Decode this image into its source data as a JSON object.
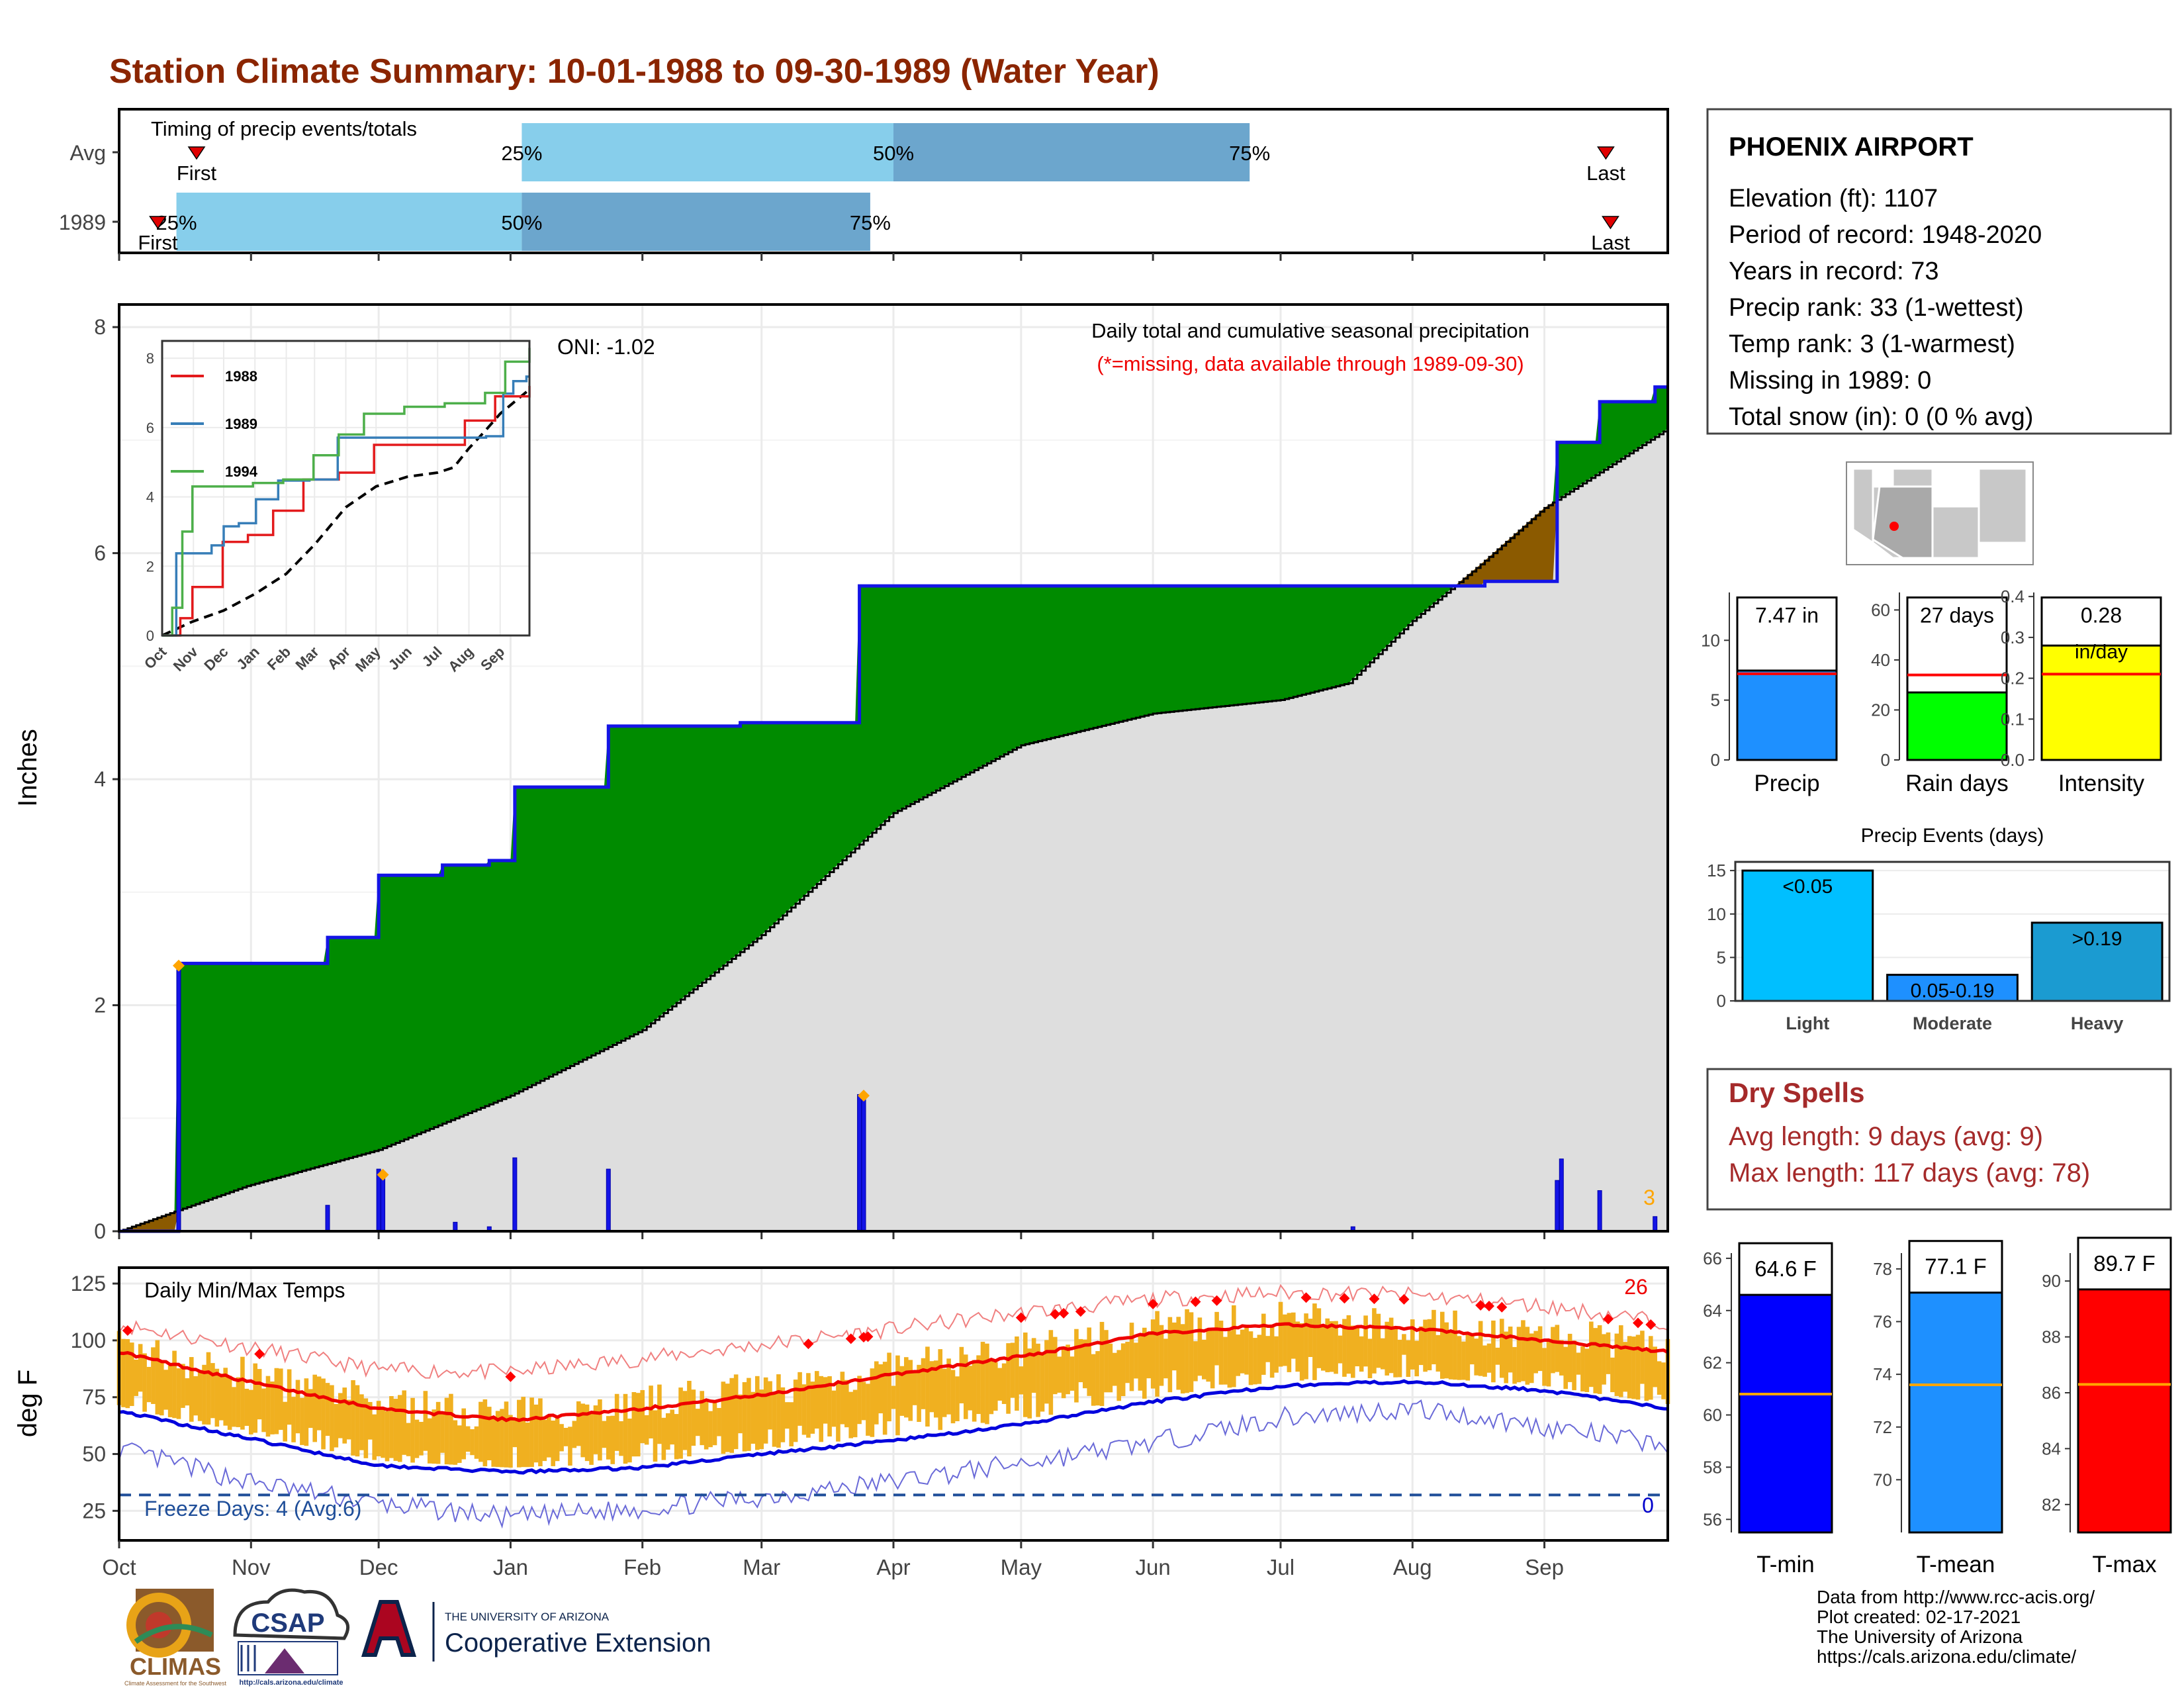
{
  "title": "Station Climate Summary: 10-01-1988 to 09-30-1989 (Water Year)",
  "colors": {
    "title": "#8b2500",
    "green_surplus": "#008b00",
    "avg_gray": "#dedede",
    "blue_line": "#1414e6",
    "orange_bar": "#f0b020",
    "light_blue": "#87ceeb",
    "steel_blue": "#6ca6cd",
    "dry_spell_red": "#a52a2a"
  },
  "months": [
    "Oct",
    "Nov",
    "Dec",
    "Jan",
    "Feb",
    "Mar",
    "Apr",
    "May",
    "Jun",
    "Jul",
    "Aug",
    "Sep"
  ],
  "timing": {
    "title": "Timing of precip events/totals",
    "rows": [
      "Avg",
      "1989"
    ],
    "avg": {
      "first": 0.05,
      "q25": 0.26,
      "q50": 0.5,
      "q75": 0.73,
      "last": 0.96
    },
    "y1989": {
      "first": 0.025,
      "q25": 0.037,
      "q50": 0.26,
      "q75": 0.485,
      "last": 0.963
    },
    "first_label": "First",
    "last_label": "Last",
    "q_labels": [
      "25%",
      "50%",
      "75%"
    ]
  },
  "precip_chart": {
    "type": "area",
    "ylabel": "Inches",
    "yticks": [
      0,
      2,
      4,
      6,
      8
    ],
    "ylim": [
      0,
      8.2
    ],
    "oni": "ONI: -1.02",
    "subtitle": "Daily total and cumulative seasonal precipitation",
    "missing_note": "(*=missing, data available through 1989-09-30)",
    "missing_count": "3",
    "cumulative_1989": [
      [
        0,
        0.0
      ],
      [
        13,
        0.0
      ],
      [
        14,
        2.37
      ],
      [
        48,
        2.37
      ],
      [
        49,
        2.6
      ],
      [
        60,
        2.6
      ],
      [
        61,
        3.15
      ],
      [
        75,
        3.15
      ],
      [
        76,
        3.24
      ],
      [
        86,
        3.24
      ],
      [
        87,
        3.28
      ],
      [
        92,
        3.28
      ],
      [
        93,
        3.93
      ],
      [
        114,
        3.93
      ],
      [
        115,
        4.47
      ],
      [
        145,
        4.47
      ],
      [
        146,
        4.5
      ],
      [
        173,
        4.5
      ],
      [
        174,
        5.71
      ],
      [
        320,
        5.71
      ],
      [
        321,
        5.75
      ],
      [
        337,
        5.75
      ],
      [
        338,
        6.98
      ],
      [
        347,
        6.98
      ],
      [
        348,
        7.34
      ],
      [
        360,
        7.34
      ],
      [
        361,
        7.47
      ],
      [
        364,
        7.47
      ]
    ],
    "cumulative_avg": [
      [
        0,
        0.0
      ],
      [
        30,
        0.4
      ],
      [
        61,
        0.72
      ],
      [
        92,
        1.2
      ],
      [
        123,
        1.78
      ],
      [
        151,
        2.62
      ],
      [
        182,
        3.7
      ],
      [
        212,
        4.3
      ],
      [
        243,
        4.58
      ],
      [
        273,
        4.7
      ],
      [
        289,
        4.85
      ],
      [
        304,
        5.4
      ],
      [
        320,
        5.9
      ],
      [
        335,
        6.4
      ],
      [
        364,
        7.1
      ]
    ],
    "daily_bars": [
      [
        14,
        2.37
      ],
      [
        49,
        0.23
      ],
      [
        61,
        0.55
      ],
      [
        62,
        0.48
      ],
      [
        79,
        0.08
      ],
      [
        87,
        0.04
      ],
      [
        93,
        0.65
      ],
      [
        115,
        0.55
      ],
      [
        174,
        1.21
      ],
      [
        175,
        1.18
      ],
      [
        290,
        0.04
      ],
      [
        338,
        0.45
      ],
      [
        339,
        0.64
      ],
      [
        348,
        0.36
      ],
      [
        361,
        0.13
      ]
    ],
    "diamonds": [
      [
        14,
        2.35
      ],
      [
        62,
        0.5
      ],
      [
        175,
        1.2
      ]
    ],
    "inset": {
      "yticks": [
        0,
        2,
        4,
        6,
        8
      ],
      "months": [
        "Oct",
        "Nov",
        "Dec",
        "Jan",
        "Feb",
        "Mar",
        "Apr",
        "May",
        "Jun",
        "Jul",
        "Aug",
        "Sep"
      ],
      "series": [
        {
          "name": "1988",
          "color": "#e31a1c",
          "points": [
            [
              0,
              0.0
            ],
            [
              18,
              0.5
            ],
            [
              30,
              1.4
            ],
            [
              60,
              2.7
            ],
            [
              85,
              2.9
            ],
            [
              110,
              3.6
            ],
            [
              140,
              4.5
            ],
            [
              175,
              4.7
            ],
            [
              210,
              5.5
            ],
            [
              275,
              5.5
            ],
            [
              300,
              6.2
            ],
            [
              330,
              6.9
            ],
            [
              364,
              7.2
            ]
          ]
        },
        {
          "name": "1989",
          "color": "#377eb8",
          "points": [
            [
              0,
              0.0
            ],
            [
              14,
              2.37
            ],
            [
              49,
              2.6
            ],
            [
              61,
              3.15
            ],
            [
              76,
              3.24
            ],
            [
              93,
              3.93
            ],
            [
              115,
              4.47
            ],
            [
              146,
              4.5
            ],
            [
              174,
              5.71
            ],
            [
              321,
              5.75
            ],
            [
              338,
              6.98
            ],
            [
              348,
              7.34
            ],
            [
              361,
              7.47
            ],
            [
              364,
              7.47
            ]
          ]
        },
        {
          "name": "1994",
          "color": "#4daf4a",
          "points": [
            [
              0,
              0.0
            ],
            [
              10,
              0.8
            ],
            [
              20,
              3.0
            ],
            [
              30,
              4.3
            ],
            [
              90,
              4.4
            ],
            [
              120,
              4.5
            ],
            [
              150,
              5.2
            ],
            [
              175,
              5.8
            ],
            [
              200,
              6.4
            ],
            [
              240,
              6.6
            ],
            [
              280,
              6.7
            ],
            [
              320,
              7.0
            ],
            [
              340,
              7.9
            ],
            [
              364,
              8.3
            ]
          ]
        }
      ],
      "average": [
        [
          0,
          0.0
        ],
        [
          30,
          0.4
        ],
        [
          61,
          0.72
        ],
        [
          92,
          1.2
        ],
        [
          123,
          1.78
        ],
        [
          151,
          2.62
        ],
        [
          182,
          3.7
        ],
        [
          212,
          4.3
        ],
        [
          243,
          4.58
        ],
        [
          273,
          4.7
        ],
        [
          289,
          4.85
        ],
        [
          304,
          5.4
        ],
        [
          320,
          5.9
        ],
        [
          335,
          6.4
        ],
        [
          364,
          7.1
        ]
      ]
    }
  },
  "temp_chart": {
    "type": "line",
    "title": "Daily Min/Max Temps",
    "ylabel": "deg F",
    "yticks": [
      25,
      50,
      75,
      100,
      125
    ],
    "ylim": [
      12,
      132
    ],
    "freeze_label": "Freeze Days: 4 (Avg:6)",
    "freeze_line": 32,
    "record_high_count": "26",
    "record_low_count": "0",
    "normal_max": [
      [
        0,
        95
      ],
      [
        30,
        82
      ],
      [
        61,
        70
      ],
      [
        92,
        65
      ],
      [
        123,
        70
      ],
      [
        151,
        76
      ],
      [
        182,
        85
      ],
      [
        212,
        93
      ],
      [
        243,
        103
      ],
      [
        273,
        107
      ],
      [
        304,
        105
      ],
      [
        335,
        100
      ],
      [
        364,
        95
      ]
    ],
    "normal_min": [
      [
        0,
        69
      ],
      [
        30,
        57
      ],
      [
        61,
        45
      ],
      [
        92,
        42
      ],
      [
        123,
        44
      ],
      [
        151,
        50
      ],
      [
        182,
        56
      ],
      [
        212,
        63
      ],
      [
        243,
        73
      ],
      [
        273,
        80
      ],
      [
        304,
        82
      ],
      [
        335,
        78
      ],
      [
        364,
        70
      ]
    ],
    "record_max": [
      [
        0,
        107
      ],
      [
        30,
        97
      ],
      [
        61,
        87
      ],
      [
        92,
        86
      ],
      [
        123,
        92
      ],
      [
        151,
        98
      ],
      [
        182,
        105
      ],
      [
        212,
        112
      ],
      [
        243,
        118
      ],
      [
        273,
        121
      ],
      [
        304,
        120
      ],
      [
        335,
        115
      ],
      [
        364,
        108
      ]
    ],
    "record_min": [
      [
        0,
        52
      ],
      [
        30,
        38
      ],
      [
        61,
        28
      ],
      [
        92,
        22
      ],
      [
        123,
        26
      ],
      [
        151,
        31
      ],
      [
        182,
        38
      ],
      [
        212,
        46
      ],
      [
        243,
        55
      ],
      [
        273,
        66
      ],
      [
        304,
        70
      ],
      [
        335,
        62
      ],
      [
        364,
        54
      ]
    ]
  },
  "station": {
    "name": "PHOENIX AIRPORT",
    "lines": [
      "Elevation (ft): 1107",
      "Period of record: 1948-2020",
      "Years in record: 73",
      "Precip rank: 33 (1-wettest)",
      "Temp rank: 3 (1-warmest)",
      "Missing in 1989: 0",
      "Total snow (in): 0 (0 % avg)"
    ]
  },
  "summary_bars": [
    {
      "label": "Precip",
      "value_label": "7.47 in",
      "value": 7.47,
      "avg": 7.2,
      "yticks": [
        0,
        5,
        10
      ],
      "ymax": 14,
      "color": "#1e90ff"
    },
    {
      "label": "Rain days",
      "value_label": "27 days",
      "value": 27,
      "avg": 34,
      "yticks": [
        0,
        20,
        40,
        60
      ],
      "ymax": 67,
      "color": "#00ff00"
    },
    {
      "label": "Intensity",
      "value_label": "0.28",
      "unit_label": "in/day",
      "value": 0.28,
      "avg": 0.21,
      "yticks": [
        0.0,
        0.1,
        0.2,
        0.3,
        0.4
      ],
      "ymax": 0.41,
      "color": "#ffff00"
    }
  ],
  "precip_events": {
    "title": "Precip Events (days)",
    "yticks": [
      0,
      5,
      10,
      15
    ],
    "ymax": 16,
    "bars": [
      {
        "label": "Light",
        "value_label": "<0.05",
        "value": 15,
        "color": "#00bfff"
      },
      {
        "label": "Moderate",
        "value_label": "0.05-0.19",
        "value": 3,
        "color": "#1e90ff"
      },
      {
        "label": "Heavy",
        "value_label": ">0.19",
        "value": 9,
        "color": "#1b9bd1"
      }
    ]
  },
  "dry_spells": {
    "title": "Dry Spells",
    "avg": "Avg length: 9 days (avg: 9)",
    "max": "Max length: 117 days (avg: 78)"
  },
  "temp_bars": [
    {
      "label": "T-min",
      "value_label": "64.6 F",
      "value": 64.6,
      "avg": 60.8,
      "yticks": [
        56,
        58,
        60,
        62,
        64,
        66
      ],
      "ylim": [
        55.5,
        66.2
      ],
      "color": "#0000ff"
    },
    {
      "label": "T-mean",
      "value_label": "77.1 F",
      "value": 77.1,
      "avg": 73.6,
      "yticks": [
        70,
        72,
        74,
        76,
        78
      ],
      "ylim": [
        68.0,
        78.6
      ],
      "color": "#1e90ff"
    },
    {
      "label": "T-max",
      "value_label": "89.7 F",
      "value": 89.7,
      "avg": 86.3,
      "yticks": [
        82,
        84,
        86,
        88,
        90
      ],
      "ylim": [
        81.0,
        91.0
      ],
      "color": "#ff0000"
    }
  ],
  "credits": [
    "Data from http://www.rcc-acis.org/",
    "Plot created: 02-17-2021",
    "The University of Arizona",
    "https://cals.arizona.edu/climate/"
  ],
  "logos": {
    "climas": "CLIMAS",
    "climas_sub": "Climate Assessment for the Southwest",
    "csap": "CSAP",
    "csap_url": "http://cals.arizona.edu/climate",
    "ua_top": "THE UNIVERSITY OF ARIZONA",
    "ua_bottom": "Cooperative Extension"
  }
}
